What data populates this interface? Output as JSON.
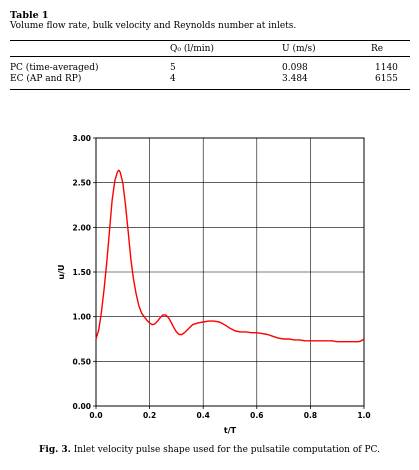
{
  "table": {
    "label": "Table 1",
    "caption": "Volume flow rate, bulk velocity and Reynolds number at inlets.",
    "columns": [
      "",
      "Q₀ (l/min)",
      "U (m/s)",
      "Re"
    ],
    "rows": [
      [
        "PC (time-averaged)",
        "5",
        "0.098",
        "1140"
      ],
      [
        "EC (AP and RP)",
        "4",
        "3.484",
        "6155"
      ]
    ]
  },
  "figure": {
    "caption_label": "Fig. 3.",
    "caption_text": "Inlet velocity pulse shape used for the pulsatile computation of PC."
  },
  "chart_data": {
    "type": "line",
    "title": "",
    "xlabel": "t/T",
    "ylabel": "u/U",
    "xlim": [
      0,
      1
    ],
    "ylim": [
      0,
      3
    ],
    "xticks": [
      "0.0",
      "0.2",
      "0.4",
      "0.6",
      "0.8",
      "1.0"
    ],
    "yticks": [
      "0.00",
      "0.50",
      "1.00",
      "1.50",
      "2.00",
      "2.50",
      "3.00"
    ],
    "grid": true,
    "series": [
      {
        "color": "#ff0000",
        "x": [
          0.0,
          0.01,
          0.02,
          0.03,
          0.04,
          0.05,
          0.06,
          0.07,
          0.08,
          0.085,
          0.09,
          0.1,
          0.11,
          0.12,
          0.13,
          0.14,
          0.15,
          0.16,
          0.17,
          0.18,
          0.19,
          0.2,
          0.21,
          0.22,
          0.23,
          0.24,
          0.25,
          0.26,
          0.27,
          0.28,
          0.29,
          0.3,
          0.31,
          0.32,
          0.33,
          0.34,
          0.35,
          0.36,
          0.38,
          0.4,
          0.42,
          0.44,
          0.46,
          0.48,
          0.5,
          0.52,
          0.54,
          0.56,
          0.58,
          0.6,
          0.62,
          0.64,
          0.66,
          0.68,
          0.7,
          0.72,
          0.74,
          0.76,
          0.78,
          0.8,
          0.82,
          0.84,
          0.86,
          0.88,
          0.9,
          0.92,
          0.94,
          0.96,
          0.98,
          0.99,
          1.0
        ],
        "y": [
          0.75,
          0.85,
          1.05,
          1.3,
          1.6,
          1.95,
          2.3,
          2.52,
          2.62,
          2.64,
          2.62,
          2.5,
          2.25,
          1.95,
          1.65,
          1.42,
          1.25,
          1.12,
          1.04,
          1.0,
          0.96,
          0.93,
          0.91,
          0.92,
          0.95,
          0.99,
          1.02,
          1.02,
          0.99,
          0.94,
          0.88,
          0.83,
          0.8,
          0.8,
          0.82,
          0.85,
          0.88,
          0.91,
          0.93,
          0.94,
          0.95,
          0.95,
          0.94,
          0.91,
          0.87,
          0.84,
          0.83,
          0.83,
          0.82,
          0.82,
          0.81,
          0.8,
          0.78,
          0.76,
          0.75,
          0.75,
          0.74,
          0.74,
          0.73,
          0.73,
          0.73,
          0.73,
          0.73,
          0.73,
          0.72,
          0.72,
          0.72,
          0.72,
          0.72,
          0.73,
          0.75
        ]
      }
    ]
  }
}
